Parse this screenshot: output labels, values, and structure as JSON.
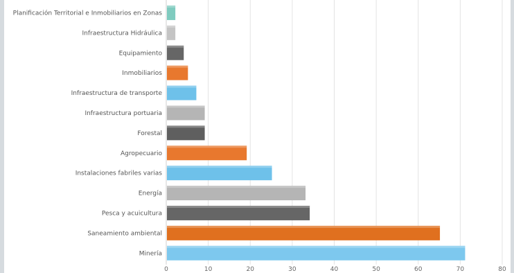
{
  "chart_data": {
    "type": "bar",
    "orientation": "horizontal",
    "title": "",
    "xlabel": "",
    "ylabel": "",
    "xlim": [
      0,
      80
    ],
    "xticks": [
      "0",
      "10",
      "20",
      "30",
      "40",
      "50",
      "60",
      "70",
      "80"
    ],
    "grid": true,
    "legend": "none",
    "categories": [
      "Planificación Territorial e Inmobiliarios en Zonas",
      "Infraestructura Hidráulica",
      "Equipamiento",
      "Inmobiliarios",
      "Infraestructura de transporte",
      "Infraestructura portuaria",
      "Forestal",
      "Agropecuario",
      "Instalaciones fabriles varias",
      "Energía",
      "Pesca y acuicultura",
      "Saneamiento ambiental",
      "Minería"
    ],
    "values": [
      2,
      2,
      4,
      5,
      7,
      9,
      9,
      19,
      25,
      33,
      34,
      65,
      71
    ],
    "colors": [
      "#7fcbbf",
      "#c4c4c4",
      "#666666",
      "#e8782e",
      "#6ec1ea",
      "#b5b5b5",
      "#5f5f5f",
      "#e8782e",
      "#6ec1ea",
      "#b5b5b5",
      "#666666",
      "#e0701f",
      "#7dc8ee"
    ]
  }
}
